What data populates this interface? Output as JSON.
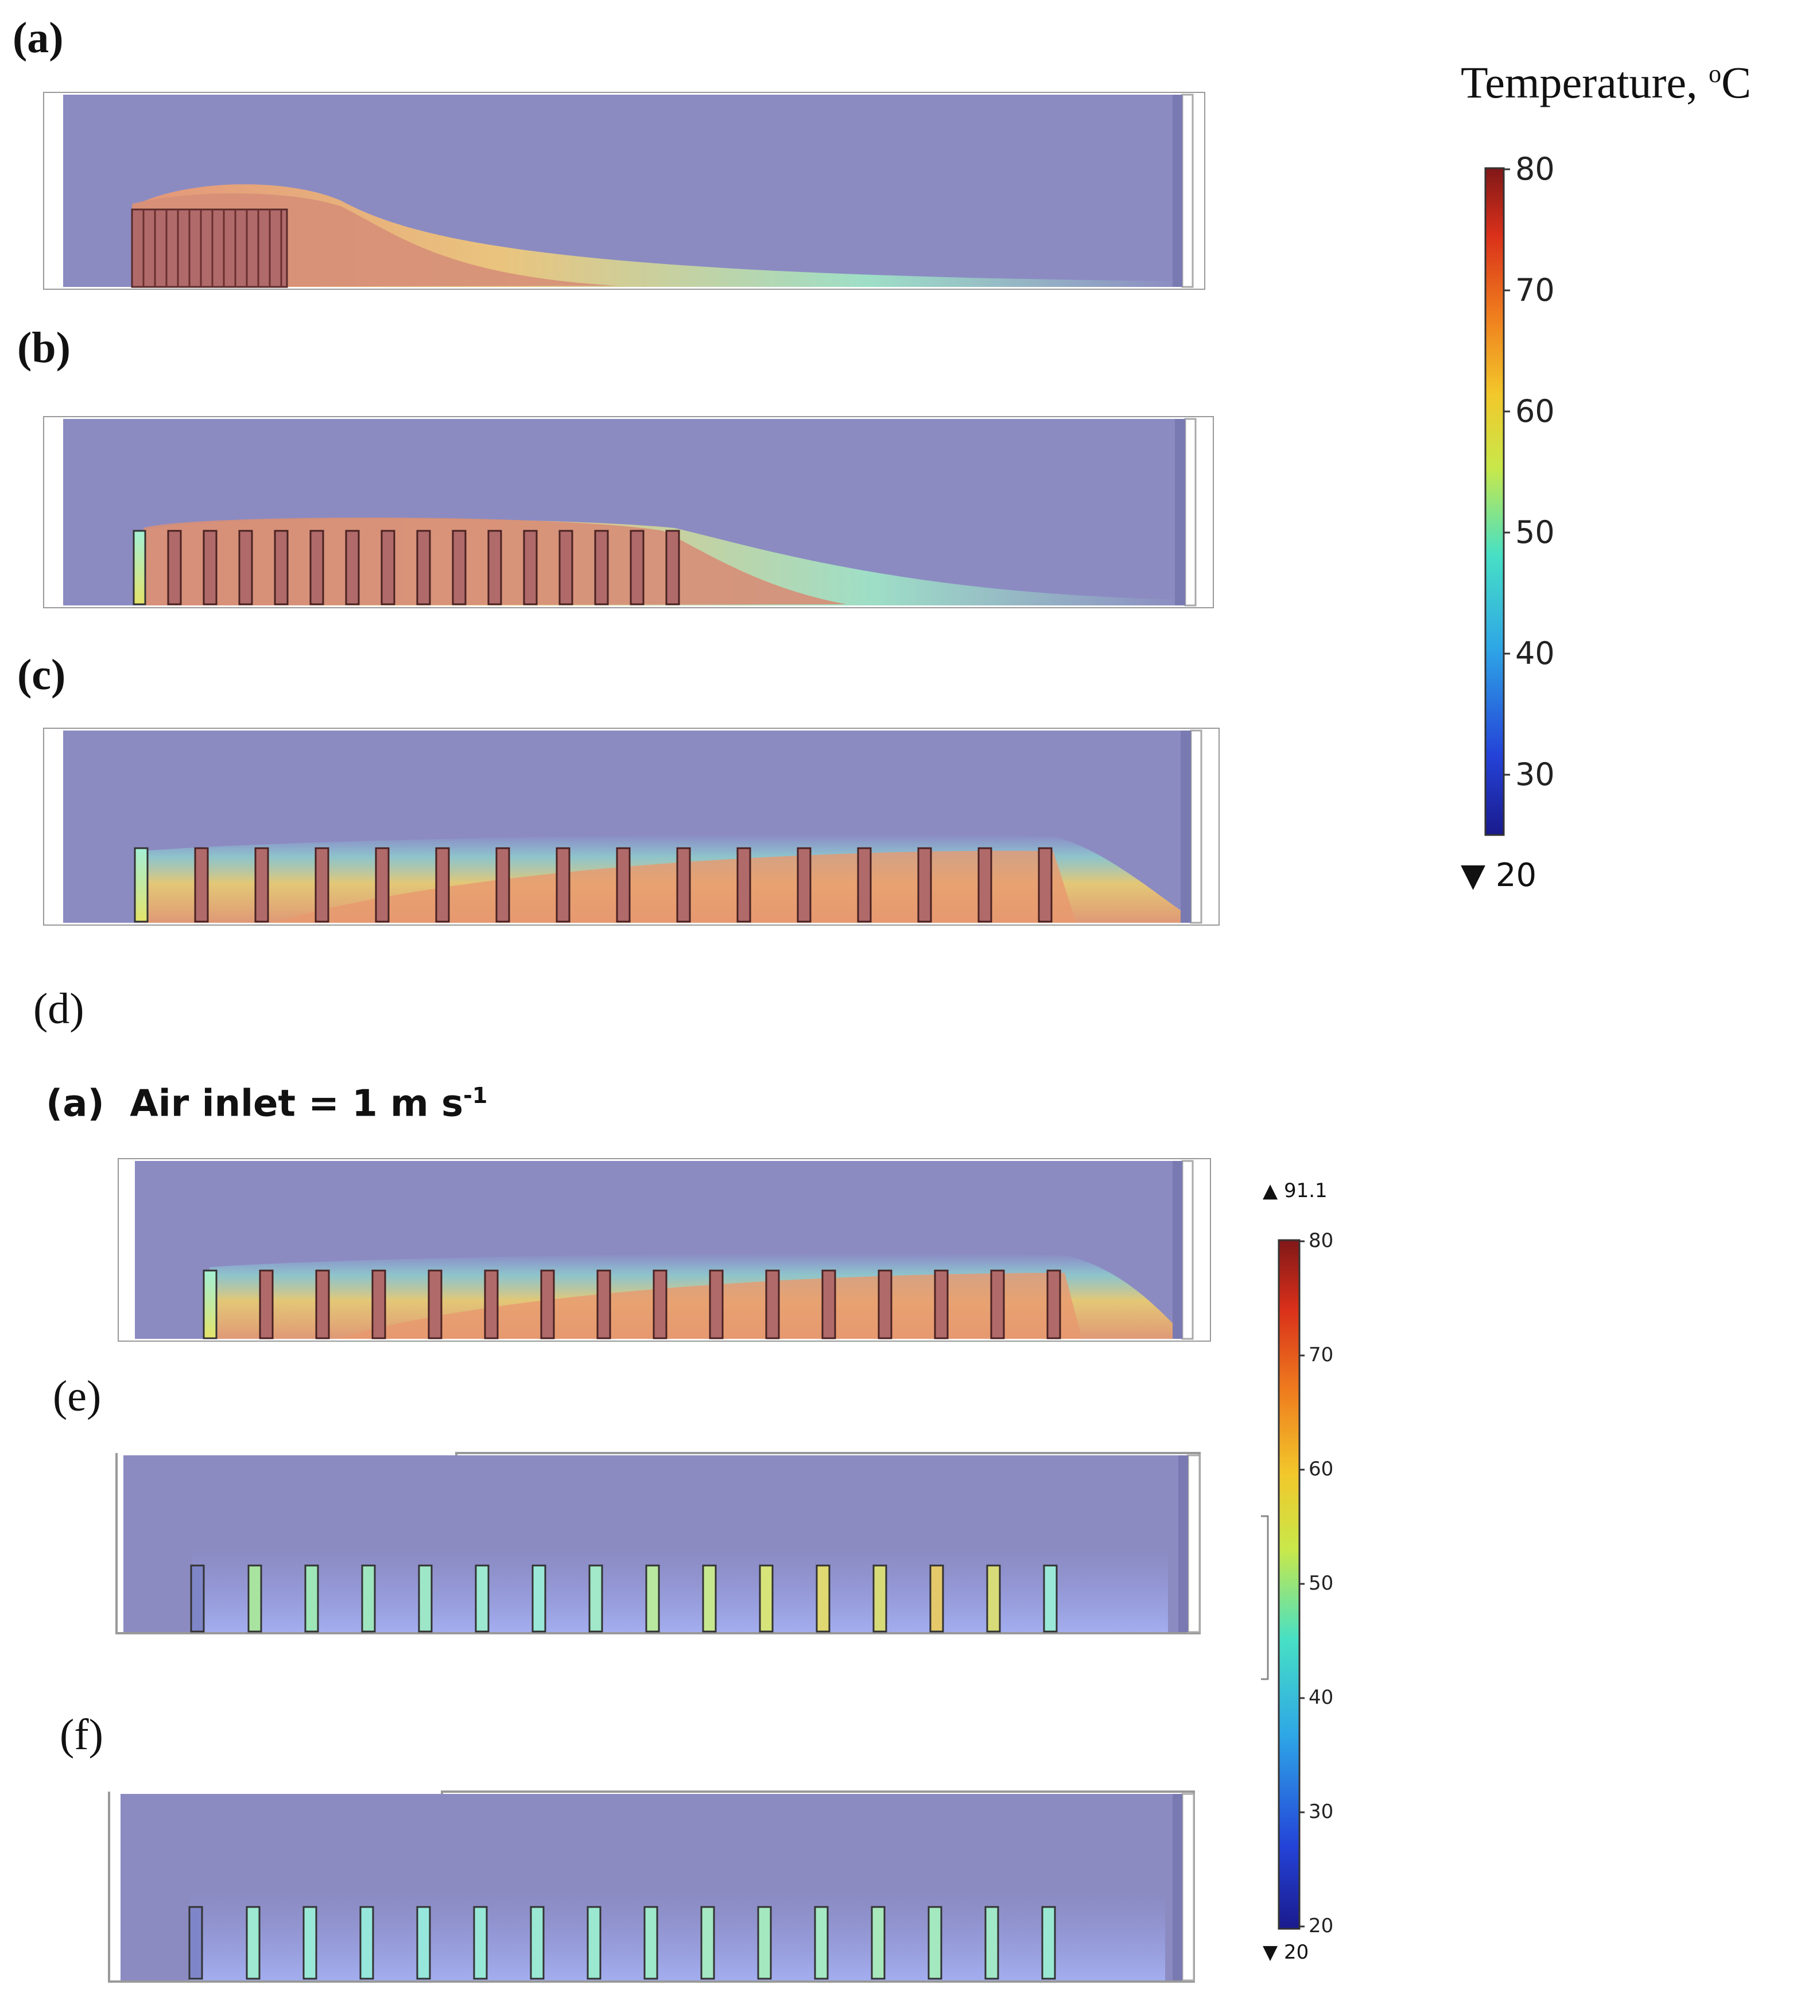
{
  "panels": [
    {
      "label": "(a)",
      "style": "bold-letter"
    },
    {
      "label": "(b)",
      "style": "bold-letter"
    },
    {
      "label": "(c)",
      "style": "bold-letter"
    },
    {
      "label": "(d)",
      "style": "plain"
    },
    {
      "label": "(e)",
      "style": "plain"
    },
    {
      "label": "(f)",
      "style": "plain"
    }
  ],
  "subfigure": {
    "label": "(a)",
    "text": "Air inlet = 1 m s",
    "superscript": "-1"
  },
  "colorbar_main": {
    "title": "Temperature, ",
    "title_sup": "o",
    "title_unit": "C",
    "ticks": [
      "80",
      "70",
      "60",
      "50",
      "40",
      "30"
    ],
    "min_marker": "20",
    "min_symbol": "▼"
  },
  "colorbar_secondary": {
    "max_marker": "91.1",
    "max_symbol": "▲",
    "ticks": [
      "80",
      "70",
      "60",
      "50",
      "40",
      "30",
      "20"
    ],
    "min_marker": "20",
    "min_symbol": "▼"
  },
  "colors": {
    "background_air": "#8b8bc2",
    "hot": "#c9826f",
    "cold": "#2b2b9e",
    "rack_fill": "#b06a6a"
  }
}
